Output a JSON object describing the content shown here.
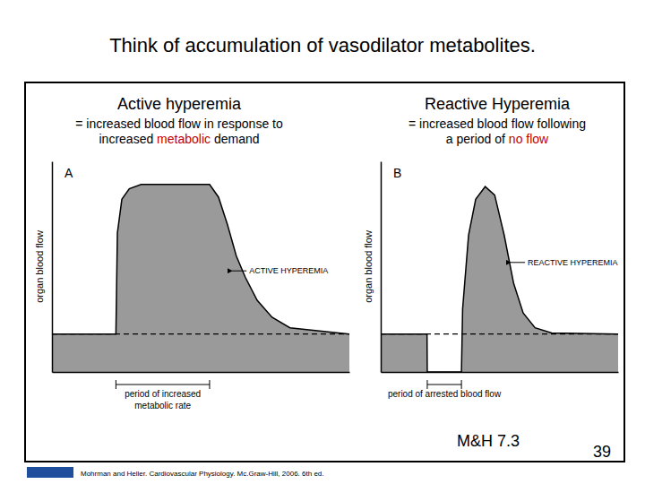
{
  "slide": {
    "title": "Think of accumulation of vasodilator metabolites.",
    "figure_label": "M&H 7.3",
    "page_number": 39,
    "citation": "Mohrman and Heller. Cardiovascular Physiology. Mc.Graw-Hill, 2006. 6th ed."
  },
  "chart_data": [
    {
      "type": "area",
      "title": "Active hyperemia",
      "subtitle": [
        [
          "= increased blood flow in response to"
        ],
        [
          "increased ",
          {
            "text": "metabolic",
            "color": "#c00000"
          },
          " demand"
        ]
      ],
      "label": "A",
      "ylabel": "organ blood flow",
      "x": [
        0,
        2.15,
        2.2,
        2.35,
        2.6,
        3.0,
        5.3,
        5.6,
        5.9,
        6.2,
        6.5,
        6.9,
        7.4,
        8.0,
        10
      ],
      "values": [
        1.8,
        1.8,
        6.6,
        8.2,
        8.7,
        8.9,
        8.9,
        8.3,
        7.0,
        5.5,
        4.5,
        3.4,
        2.6,
        2.1,
        1.8
      ],
      "xlim": [
        0,
        10
      ],
      "ylim": [
        0,
        10
      ],
      "tick_labels": false,
      "color": "#9a9a9a",
      "baseline": 1.8,
      "annotations": [
        {
          "text": [
            "ACTIVE HYPEREMIA"
          ],
          "x": 6.0,
          "y": 4.8
        },
        {
          "text": [
            "period of increased",
            "metabolic rate"
          ],
          "span": [
            2.15,
            5.3
          ]
        }
      ]
    },
    {
      "type": "area",
      "title": "Reactive Hyperemia",
      "subtitle": [
        [
          "= increased blood flow following"
        ],
        [
          "a period of ",
          {
            "text": "no flow",
            "color": "#c00000"
          }
        ]
      ],
      "label": "B",
      "ylabel": "organ blood flow",
      "x": [
        0,
        1.95,
        1.96,
        3.39,
        3.4,
        3.45,
        3.7,
        4.0,
        4.4,
        4.8,
        5.2,
        5.6,
        6.0,
        6.5,
        7.2,
        10
      ],
      "values": [
        1.8,
        1.8,
        0,
        0,
        0,
        3.0,
        6.5,
        8.2,
        8.8,
        8.4,
        6.5,
        4.2,
        2.8,
        2.1,
        1.85,
        1.8
      ],
      "xlim": [
        0,
        10
      ],
      "ylim": [
        0,
        10
      ],
      "tick_labels": false,
      "color": "#9a9a9a",
      "baseline": 1.8,
      "annotations": [
        {
          "text": [
            "REACTIVE HYPEREMIA"
          ],
          "x": 5.4,
          "y": 5.2
        },
        {
          "text": [
            "period of arrested blood flow"
          ],
          "span": [
            1.96,
            3.4
          ]
        }
      ]
    }
  ]
}
